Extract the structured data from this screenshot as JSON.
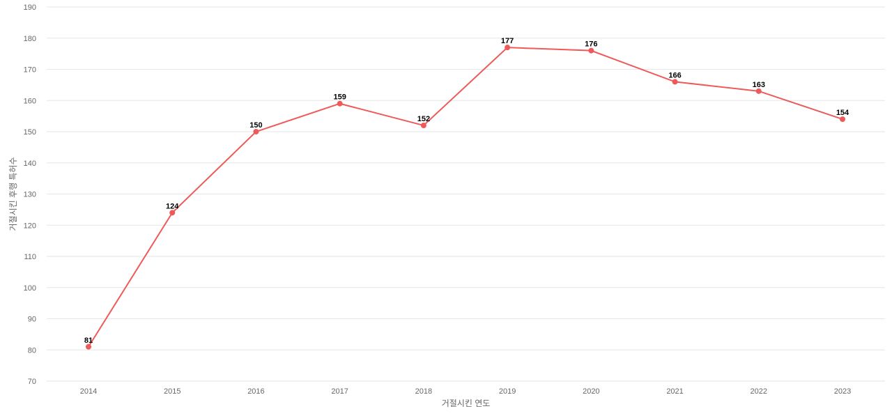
{
  "chart_data": {
    "type": "line",
    "x": [
      "2014",
      "2015",
      "2016",
      "2017",
      "2018",
      "2019",
      "2020",
      "2021",
      "2022",
      "2023"
    ],
    "series": [
      {
        "values": [
          81,
          124,
          150,
          159,
          152,
          177,
          176,
          166,
          163,
          154
        ]
      }
    ],
    "xlabel": "거절시킨 연도",
    "ylabel": "거절시킨 후행 특허수",
    "ylim": [
      70,
      190
    ],
    "yticks": [
      70,
      80,
      90,
      100,
      110,
      120,
      130,
      140,
      150,
      160,
      170,
      180,
      190
    ],
    "grid": true,
    "line_color": "#ee5a5a",
    "grid_color": "#e6e6e6",
    "data_labels": true
  }
}
